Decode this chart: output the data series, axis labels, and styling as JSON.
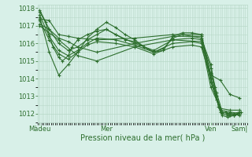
{
  "title": "",
  "xlabel": "Pression niveau de la mer( hPa )",
  "background_color": "#d8f0e8",
  "plot_bg_color": "#d8f0e8",
  "line_color": "#2d6e2d",
  "grid_color": "#b8d8c8",
  "text_color": "#2d6e2d",
  "ylim": [
    1011.5,
    1018.2
  ],
  "yticks": [
    1012,
    1013,
    1014,
    1015,
    1016,
    1017,
    1018
  ],
  "xtick_labels": [
    "Màdeu",
    "Mer",
    "Ven",
    "Sam|"
  ],
  "xtick_positions": [
    0,
    35,
    90,
    105
  ],
  "x_total": 108,
  "xlim": [
    -1,
    109
  ],
  "series": [
    [
      0,
      1017.4,
      5,
      1017.3,
      10,
      1016.5,
      15,
      1016.4,
      20,
      1016.3,
      30,
      1016.2,
      50,
      1016.3,
      70,
      1016.5,
      85,
      1016.5,
      90,
      1014.0,
      95,
      1012.1,
      100,
      1012.0,
      105,
      1011.9
    ],
    [
      0,
      1017.1,
      5,
      1016.8,
      10,
      1016.3,
      15,
      1016.1,
      20,
      1015.8,
      30,
      1015.5,
      50,
      1016.0,
      70,
      1016.4,
      85,
      1016.4,
      90,
      1013.8,
      95,
      1012.2,
      100,
      1012.1,
      105,
      1012.0
    ],
    [
      0,
      1017.0,
      10,
      1016.2,
      20,
      1015.3,
      30,
      1015.0,
      50,
      1015.8,
      70,
      1016.2,
      85,
      1016.1,
      90,
      1013.5,
      95,
      1012.3,
      100,
      1012.2,
      105,
      1012.2
    ],
    [
      0,
      1017.5,
      5,
      1015.5,
      10,
      1014.2,
      15,
      1014.8,
      20,
      1015.5,
      25,
      1016.3,
      30,
      1016.8,
      35,
      1017.2,
      40,
      1016.9,
      45,
      1016.5,
      50,
      1016.2,
      55,
      1015.8,
      60,
      1015.5,
      65,
      1015.6,
      70,
      1016.4,
      75,
      1016.6,
      80,
      1016.6,
      85,
      1016.5,
      90,
      1014.2,
      95,
      1013.9,
      100,
      1013.1,
      105,
      1012.9
    ],
    [
      0,
      1017.8,
      3,
      1017.2,
      5,
      1016.5,
      7,
      1015.8,
      10,
      1015.2,
      12,
      1015.0,
      15,
      1015.3,
      17,
      1015.8,
      20,
      1016.2,
      25,
      1016.5,
      30,
      1016.7,
      35,
      1016.8,
      40,
      1016.5,
      45,
      1016.2,
      50,
      1016.1,
      55,
      1015.8,
      60,
      1015.5,
      65,
      1015.7,
      70,
      1016.3,
      75,
      1016.5,
      80,
      1016.4,
      85,
      1016.3,
      90,
      1014.8,
      92,
      1013.5,
      94,
      1012.4,
      96,
      1012.0,
      98,
      1012.1,
      100,
      1011.9,
      102,
      1011.9,
      104,
      1012.0,
      106,
      1012.1
    ],
    [
      0,
      1017.9,
      5,
      1016.8,
      10,
      1016.0,
      15,
      1015.6,
      20,
      1015.8,
      25,
      1016.2,
      30,
      1016.5,
      35,
      1016.8,
      40,
      1016.5,
      50,
      1016.0,
      60,
      1015.6,
      70,
      1016.2,
      80,
      1016.3,
      85,
      1016.2,
      90,
      1014.6,
      93,
      1013.2,
      96,
      1012.1,
      99,
      1012.0,
      102,
      1012.0,
      105,
      1012.1
    ],
    [
      0,
      1017.6,
      5,
      1016.4,
      10,
      1015.6,
      15,
      1015.3,
      20,
      1015.6,
      25,
      1016.0,
      30,
      1016.3,
      40,
      1016.2,
      50,
      1015.9,
      60,
      1015.5,
      70,
      1016.0,
      80,
      1016.1,
      85,
      1016.0,
      90,
      1014.3,
      93,
      1013.0,
      96,
      1012.0,
      99,
      1011.9,
      102,
      1011.9,
      105,
      1012.0
    ],
    [
      0,
      1017.3,
      5,
      1016.2,
      10,
      1015.4,
      15,
      1015.1,
      20,
      1015.5,
      25,
      1015.9,
      30,
      1016.1,
      40,
      1016.0,
      50,
      1015.8,
      60,
      1015.4,
      70,
      1015.8,
      80,
      1015.9,
      85,
      1015.8,
      90,
      1014.0,
      93,
      1012.8,
      96,
      1011.9,
      99,
      1011.8,
      102,
      1011.9,
      105,
      1012.0
    ]
  ]
}
